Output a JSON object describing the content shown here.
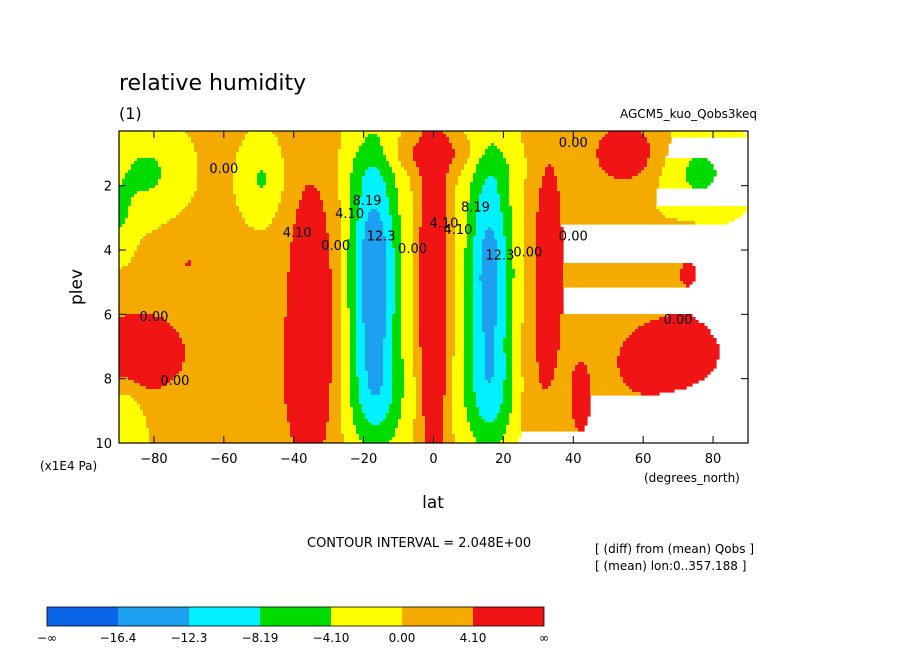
{
  "chart_data": {
    "type": "heatmap",
    "title": "relative humidity",
    "subtitle": "(1)",
    "experiment": "AGCM5_kuo_Qobs3keq",
    "xlabel": "lat",
    "ylabel": "plev",
    "x_unit": "(degrees_north)",
    "y_unit": "(x1E4 Pa)",
    "xlim": [
      -90,
      90
    ],
    "ylim": [
      10,
      0.3
    ],
    "x_ticks": [
      -80,
      -60,
      -40,
      -20,
      0,
      20,
      40,
      60,
      80
    ],
    "x_tick_labels": [
      "−80",
      "−60",
      "−40",
      "−20",
      "0",
      "20",
      "40",
      "60",
      "80"
    ],
    "y_ticks": [
      2,
      4,
      6,
      8,
      10
    ],
    "y_tick_labels": [
      "2",
      "4",
      "6",
      "8",
      "10"
    ],
    "contour_interval_text": "CONTOUR INTERVAL = 2.048E+00",
    "notes": [
      "[ (diff) from (mean) Qobs ]",
      "[ (mean) lon:0..357.188 ]"
    ],
    "colorbar": {
      "colors": [
        "#0a64e6",
        "#1ea0f0",
        "#00f0ff",
        "#00dc00",
        "#ffff00",
        "#f5aa00",
        "#f01414"
      ],
      "labels": [
        "−∞",
        "−16.4",
        "−12.3",
        "−8.19",
        "−4.10",
        "0.00",
        "4.10",
        "∞"
      ]
    },
    "level_values": [
      -16.4,
      -12.3,
      -8.19,
      -4.1,
      0.0,
      4.1
    ],
    "contour_labels": [
      {
        "text": "0.00",
        "lat": -60,
        "plev": 1.6
      },
      {
        "text": "4.10",
        "lat": -39,
        "plev": 3.6
      },
      {
        "text": "0.00",
        "lat": -28,
        "plev": 4.0
      },
      {
        "text": "4.10",
        "lat": -24,
        "plev": 3.0
      },
      {
        "text": "8.19",
        "lat": -19,
        "plev": 2.6
      },
      {
        "text": "12.3",
        "lat": -15,
        "plev": 3.7
      },
      {
        "text": "0.00",
        "lat": -6,
        "plev": 4.1
      },
      {
        "text": "4.10",
        "lat": 3,
        "plev": 3.3
      },
      {
        "text": "4.10",
        "lat": 7,
        "plev": 3.5
      },
      {
        "text": "8.19",
        "lat": 12,
        "plev": 2.8
      },
      {
        "text": "12.3",
        "lat": 19,
        "plev": 4.3
      },
      {
        "text": "0.00",
        "lat": 27,
        "plev": 4.2
      },
      {
        "text": "0.00",
        "lat": 40,
        "plev": 3.7
      },
      {
        "text": "0.00",
        "lat": 40,
        "plev": 0.8
      },
      {
        "text": "0.00",
        "lat": -80,
        "plev": 6.2
      },
      {
        "text": "0.00",
        "lat": -74,
        "plev": 8.2
      },
      {
        "text": "0.00",
        "lat": 70,
        "plev": 6.3
      }
    ]
  }
}
